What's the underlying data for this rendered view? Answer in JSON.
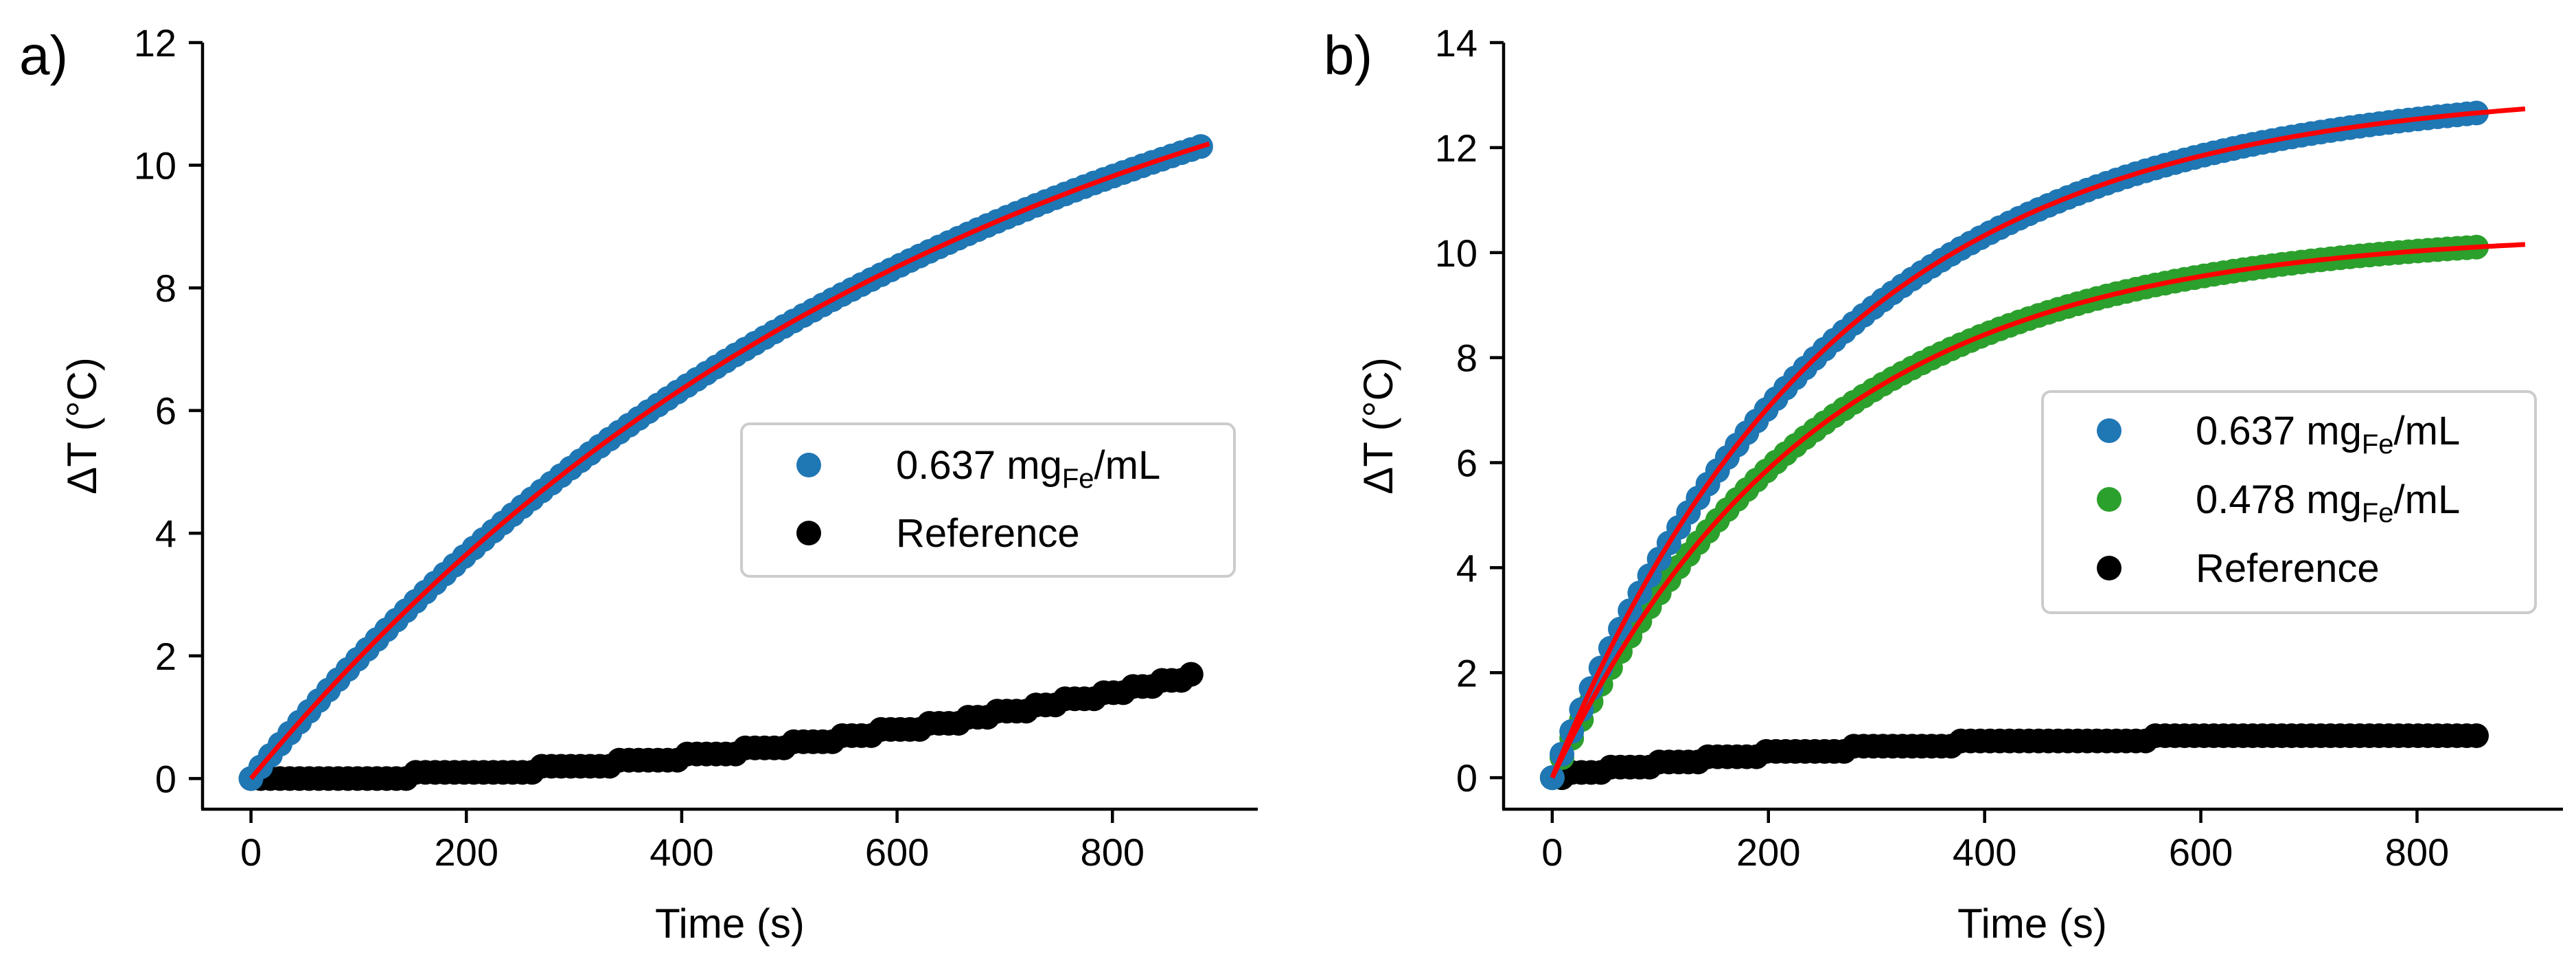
{
  "chart_data": [
    {
      "type": "scatter",
      "panel_label": "a)",
      "xlabel": "Time (s)",
      "ylabel": "ΔT (°C)",
      "xlim": [
        -45,
        935
      ],
      "ylim": [
        -0.5,
        12
      ],
      "xticks": [
        0,
        200,
        400,
        600,
        800
      ],
      "yticks": [
        0,
        2,
        4,
        6,
        8,
        10,
        12
      ],
      "legend_position": "center-right",
      "series": [
        {
          "name": "0.637 mg_Fe/mL",
          "legend_main": "0.637 mg",
          "legend_sub": "Fe",
          "legend_tail": "/mL",
          "color": "#1f77b4",
          "model": {
            "form": "saturating",
            "amplitude": 14.0,
            "tau": 662,
            "t_start": 0,
            "t_end": 890,
            "step": 9
          }
        },
        {
          "name": "Reference",
          "legend_main": "Reference",
          "legend_sub": "",
          "legend_tail": "",
          "color": "#000000",
          "model": {
            "form": "quadratic",
            "end_value": 1.7,
            "t_start": 0,
            "t_end": 880,
            "step": 9,
            "quantum": 0.1
          }
        }
      ],
      "fits": [
        {
          "color": "#ff0000",
          "amplitude": 14.0,
          "tau": 662,
          "t_start": 0,
          "t_end": 890
        }
      ]
    },
    {
      "type": "scatter",
      "panel_label": "b)",
      "xlabel": "Time (s)",
      "ylabel": "ΔT (°C)",
      "xlim": [
        -45,
        935
      ],
      "ylim": [
        -0.6,
        14
      ],
      "xticks": [
        0,
        200,
        400,
        600,
        800
      ],
      "yticks": [
        0,
        2,
        4,
        6,
        8,
        10,
        12,
        14
      ],
      "legend_position": "center-right",
      "series": [
        {
          "name": "0.637 mg_Fe/mL",
          "legend_main": "0.637 mg",
          "legend_sub": "Fe",
          "legend_tail": "/mL",
          "color": "#1f77b4",
          "model": {
            "form": "saturating",
            "amplitude": 13.15,
            "tau": 260,
            "t_start": 0,
            "t_end": 860,
            "step": 9
          }
        },
        {
          "name": "0.478 mg_Fe/mL",
          "legend_main": "0.478 mg",
          "legend_sub": "Fe",
          "legend_tail": "/mL",
          "color": "#2ca02c",
          "model": {
            "form": "saturating",
            "amplitude": 10.4,
            "tau": 240,
            "t_start": 0,
            "t_end": 860,
            "step": 9
          }
        },
        {
          "name": "Reference",
          "legend_main": "Reference",
          "legend_sub": "",
          "legend_tail": "",
          "color": "#000000",
          "model": {
            "form": "saturating",
            "amplitude": 0.85,
            "tau": 260,
            "t_start": 0,
            "t_end": 860,
            "step": 9,
            "quantum": 0.1
          }
        }
      ],
      "fits": [
        {
          "color": "#ff0000",
          "amplitude": 13.15,
          "tau": 260,
          "t_start": 0,
          "t_end": 900
        },
        {
          "color": "#ff0000",
          "amplitude": 10.4,
          "tau": 240,
          "t_start": 0,
          "t_end": 900
        }
      ]
    }
  ]
}
